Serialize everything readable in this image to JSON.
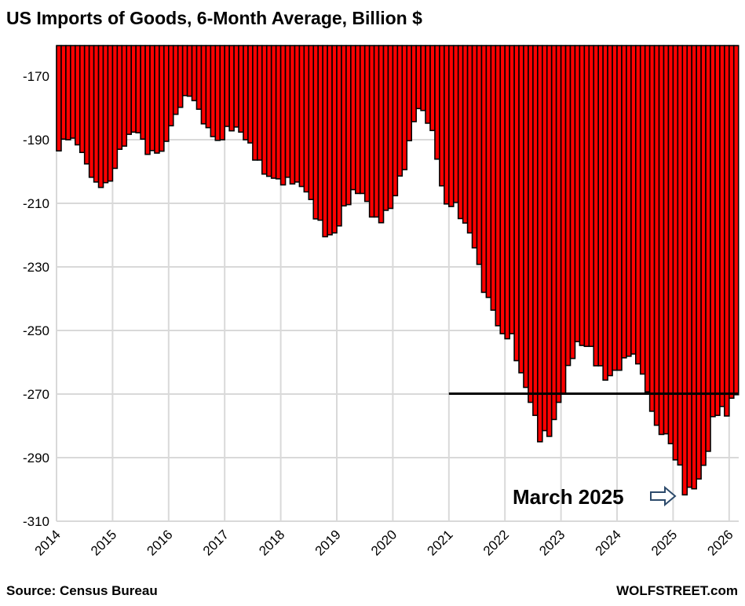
{
  "chart_data": {
    "type": "bar",
    "title": "US Imports of Goods, 6-Month Average, Billion $",
    "xlabel": "",
    "ylabel": "",
    "source": "Source: Census Bureau",
    "brand": "WOLFSTREET.com",
    "start": "2014-01",
    "frequency": "monthly",
    "ylim": [
      -310,
      -160
    ],
    "yticks": [
      -170,
      -190,
      -210,
      -230,
      -250,
      -270,
      -290,
      -310
    ],
    "ytick_labels": [
      "-170",
      "-190",
      "-210",
      "-230",
      "-250",
      "-270",
      "-290",
      "-310"
    ],
    "xtick_labels": [
      "2014",
      "2015",
      "2016",
      "2017",
      "2018",
      "2019",
      "2020",
      "2021",
      "2022",
      "2023",
      "2024",
      "2025",
      "2026"
    ],
    "grid": true,
    "bar_color": "#FF0000",
    "reference_line": {
      "value": -270,
      "from_year": 2021
    },
    "annotation": {
      "text": "March 2025",
      "month_index": 134
    },
    "values": [
      -193.5,
      -189.8,
      -190,
      -189.5,
      -191.6,
      -194,
      -197.6,
      -201.8,
      -203.3,
      -205,
      -203.5,
      -203,
      -199,
      -193,
      -192,
      -188.3,
      -187.6,
      -187.8,
      -189.8,
      -194.6,
      -193.4,
      -194.2,
      -193.6,
      -190.5,
      -185.6,
      -182,
      -179.8,
      -176.1,
      -176.3,
      -177.7,
      -180.4,
      -185,
      -186.2,
      -189,
      -190.2,
      -190,
      -185.8,
      -187.2,
      -186,
      -187.6,
      -190,
      -191,
      -196.4,
      -196.4,
      -200.8,
      -201.5,
      -202.1,
      -202.3,
      -204.2,
      -201.8,
      -203.9,
      -203.3,
      -204.7,
      -206.4,
      -208.8,
      -214.9,
      -215.3,
      -220.5,
      -219.9,
      -219.3,
      -217.1,
      -210.8,
      -210.4,
      -205.7,
      -206.9,
      -206.9,
      -209.4,
      -214.3,
      -214.3,
      -216.1,
      -212.2,
      -211.6,
      -207.6,
      -201.4,
      -199.4,
      -190.3,
      -184.3,
      -180.2,
      -180.8,
      -184.8,
      -187.1,
      -196.1,
      -204.5,
      -210.2,
      -211,
      -209.7,
      -214.8,
      -216.2,
      -219.3,
      -224,
      -229.2,
      -238,
      -239.6,
      -243.6,
      -248.5,
      -251,
      -252.6,
      -251,
      -259.5,
      -263.3,
      -267.9,
      -272.6,
      -276.7,
      -285,
      -281.5,
      -283.3,
      -278,
      -272.6,
      -269.8,
      -261,
      -258.8,
      -253.5,
      -254.7,
      -255,
      -255,
      -261.1,
      -261.1,
      -265.6,
      -264.2,
      -262.5,
      -262.5,
      -258.6,
      -258.1,
      -257.4,
      -260.5,
      -263.7,
      -269.3,
      -275.4,
      -279.8,
      -282.7,
      -282.5,
      -285.6,
      -290.7,
      -292.3,
      -301.7,
      -299.3,
      -299.8,
      -296.7,
      -292.4,
      -288,
      -277.1,
      -276.7,
      -273.9,
      -276.9,
      -271.3,
      -270.2
    ]
  }
}
